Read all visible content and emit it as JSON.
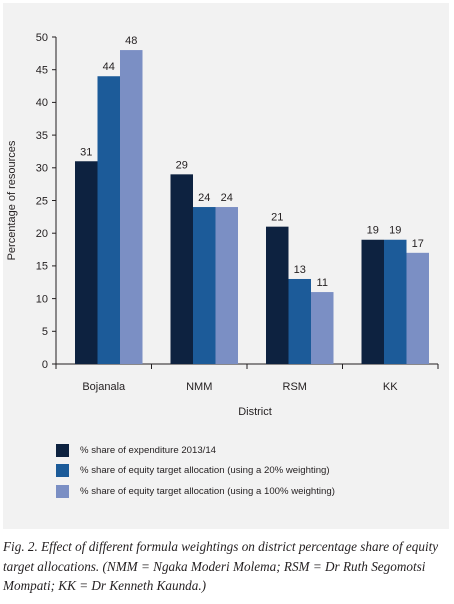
{
  "chart_data": {
    "type": "bar",
    "categories": [
      "Bojanala",
      "NMM",
      "RSM",
      "KK"
    ],
    "series": [
      {
        "name": "% share of expenditure 2013/14",
        "values": [
          31,
          29,
          21,
          19
        ],
        "color": "#0d2240"
      },
      {
        "name": "% share of equity target allocation (using a 20% weighting)",
        "values": [
          44,
          24,
          13,
          19
        ],
        "color": "#1c5b99"
      },
      {
        "name": "% share of equity target allocation (using a 100% weighting)",
        "values": [
          48,
          24,
          11,
          17
        ],
        "color": "#7b8fc4"
      }
    ],
    "title": "",
    "xlabel": "District",
    "ylabel": "Percentage of resources",
    "ylim": [
      0,
      50
    ],
    "yticks": [
      0,
      5,
      10,
      15,
      20,
      25,
      30,
      35,
      40,
      45,
      50
    ],
    "grid": false,
    "legend_position": "bottom"
  },
  "caption": "Fig. 2. Effect of different formula weightings on district percentage share of equity target allocations. (NMM = Ngaka Moderi Molema; RSM = Dr Ruth Segomotsi Mompati; KK = Dr Kenneth Kaunda.)"
}
